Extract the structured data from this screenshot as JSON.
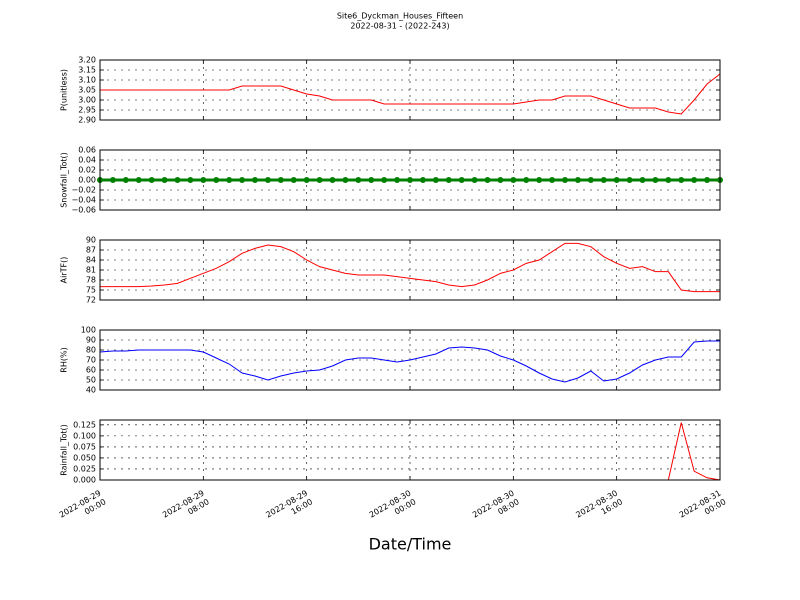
{
  "title": "Site6_Dyckman_Houses_Fifteen",
  "subtitle": "2022-08-31 - (2022-243)",
  "x_axis": {
    "xlabel": "Date/Time",
    "xlim": [
      "2022-08-29 00:00",
      "2022-08-31 00:00"
    ],
    "xticks": [
      "2022-08-29 00:00",
      "2022-08-29 08:00",
      "2022-08-29 16:00",
      "2022-08-30 00:00",
      "2022-08-30 08:00",
      "2022-08-30 16:00",
      "2022-08-31 00:00"
    ],
    "x": [
      "2022-08-29 00:00",
      "2022-08-29 01:00",
      "2022-08-29 02:00",
      "2022-08-29 03:00",
      "2022-08-29 04:00",
      "2022-08-29 05:00",
      "2022-08-29 06:00",
      "2022-08-29 07:00",
      "2022-08-29 08:00",
      "2022-08-29 09:00",
      "2022-08-29 10:00",
      "2022-08-29 11:00",
      "2022-08-29 12:00",
      "2022-08-29 13:00",
      "2022-08-29 14:00",
      "2022-08-29 15:00",
      "2022-08-29 16:00",
      "2022-08-29 17:00",
      "2022-08-29 18:00",
      "2022-08-29 19:00",
      "2022-08-29 20:00",
      "2022-08-29 21:00",
      "2022-08-29 22:00",
      "2022-08-29 23:00",
      "2022-08-30 00:00",
      "2022-08-30 01:00",
      "2022-08-30 02:00",
      "2022-08-30 03:00",
      "2022-08-30 04:00",
      "2022-08-30 05:00",
      "2022-08-30 06:00",
      "2022-08-30 07:00",
      "2022-08-30 08:00",
      "2022-08-30 09:00",
      "2022-08-30 10:00",
      "2022-08-30 11:00",
      "2022-08-30 12:00",
      "2022-08-30 13:00",
      "2022-08-30 14:00",
      "2022-08-30 15:00",
      "2022-08-30 16:00",
      "2022-08-30 17:00",
      "2022-08-30 18:00",
      "2022-08-30 19:00",
      "2022-08-30 20:00",
      "2022-08-30 21:00",
      "2022-08-30 22:00",
      "2022-08-30 23:00",
      "2022-08-31 00:00"
    ]
  },
  "chart_data": [
    {
      "type": "line",
      "ylabel": "P(unitless)",
      "color": "#ff0000",
      "grid": true,
      "ylim": [
        2.9,
        3.2
      ],
      "yticks": [
        {
          "value": 2.9,
          "label": "2.90"
        },
        {
          "value": 2.95,
          "label": "2.95"
        },
        {
          "value": 3.0,
          "label": "3.00"
        },
        {
          "value": 3.05,
          "label": "3.05"
        },
        {
          "value": 3.1,
          "label": "3.10"
        },
        {
          "value": 3.15,
          "label": "3.15"
        },
        {
          "value": 3.2,
          "label": "3.20"
        }
      ],
      "values": [
        3.05,
        3.05,
        3.05,
        3.05,
        3.05,
        3.05,
        3.05,
        3.05,
        3.05,
        3.05,
        3.05,
        3.07,
        3.07,
        3.07,
        3.07,
        3.05,
        3.03,
        3.02,
        3.0,
        3.0,
        3.0,
        3.0,
        2.98,
        2.98,
        2.98,
        2.98,
        2.98,
        2.98,
        2.98,
        2.98,
        2.98,
        2.98,
        2.98,
        2.99,
        3.0,
        3.0,
        3.02,
        3.02,
        3.02,
        3.0,
        2.98,
        2.96,
        2.96,
        2.96,
        2.94,
        2.93,
        3.0,
        3.08,
        3.13
      ]
    },
    {
      "type": "line",
      "ylabel": "Snowfall_Tot()",
      "color": "#008000",
      "markers": true,
      "grid": true,
      "ylim": [
        -0.06,
        0.06
      ],
      "yticks": [
        {
          "value": -0.06,
          "label": "−0.06"
        },
        {
          "value": -0.04,
          "label": "−0.04"
        },
        {
          "value": -0.02,
          "label": "−0.02"
        },
        {
          "value": 0,
          "label": "0.00"
        },
        {
          "value": 0.02,
          "label": "0.02"
        },
        {
          "value": 0.04,
          "label": "0.04"
        },
        {
          "value": 0.06,
          "label": "0.06"
        }
      ],
      "values": [
        0,
        0,
        0,
        0,
        0,
        0,
        0,
        0,
        0,
        0,
        0,
        0,
        0,
        0,
        0,
        0,
        0,
        0,
        0,
        0,
        0,
        0,
        0,
        0,
        0,
        0,
        0,
        0,
        0,
        0,
        0,
        0,
        0,
        0,
        0,
        0,
        0,
        0,
        0,
        0,
        0,
        0,
        0,
        0,
        0,
        0,
        0,
        0,
        0
      ]
    },
    {
      "type": "line",
      "ylabel": "AirTF()",
      "color": "#ff0000",
      "grid": true,
      "ylim": [
        72,
        90
      ],
      "yticks": [
        72,
        75,
        78,
        81,
        84,
        87,
        90
      ],
      "values": [
        76,
        76,
        76,
        76,
        76.2,
        76.5,
        77,
        78.5,
        80,
        81.5,
        83.5,
        86,
        87.5,
        88.5,
        88,
        86.5,
        84,
        82,
        81,
        80,
        79.5,
        79.5,
        79.5,
        79,
        78.5,
        78,
        77.5,
        76.5,
        76,
        76.5,
        78,
        80,
        81,
        83,
        84,
        86.5,
        89,
        89,
        88,
        85,
        83,
        81.5,
        82,
        80.5,
        80.5,
        75,
        74.5,
        74.5,
        74.5
      ]
    },
    {
      "type": "line",
      "ylabel": "RH(%)",
      "color": "#0000ff",
      "grid": true,
      "ylim": [
        40,
        100
      ],
      "yticks": [
        40,
        50,
        60,
        70,
        80,
        90,
        100
      ],
      "values": [
        78,
        79,
        79,
        80,
        80,
        80,
        80,
        80,
        78,
        72,
        66,
        57,
        54,
        50,
        54,
        57,
        59,
        60,
        64,
        70,
        72,
        72,
        70,
        68,
        70,
        73,
        76,
        82,
        83,
        82,
        80,
        74,
        70,
        64,
        57,
        51,
        48,
        52,
        59,
        49,
        51,
        57,
        65,
        70,
        73,
        73,
        88,
        89,
        89
      ]
    },
    {
      "type": "line",
      "ylabel": "Rainfall_Tot()",
      "color": "#ff0000",
      "grid": true,
      "ylim": [
        0,
        0.136
      ],
      "yticks": [
        {
          "value": 0,
          "label": "0.000"
        },
        {
          "value": 0.025,
          "label": "0.025"
        },
        {
          "value": 0.05,
          "label": "0.050"
        },
        {
          "value": 0.075,
          "label": "0.075"
        },
        {
          "value": 0.1,
          "label": "0.100"
        },
        {
          "value": 0.125,
          "label": "0.125"
        }
      ],
      "values": [
        0,
        0,
        0,
        0,
        0,
        0,
        0,
        0,
        0,
        0,
        0,
        0,
        0,
        0,
        0,
        0,
        0,
        0,
        0,
        0,
        0,
        0,
        0,
        0,
        0,
        0,
        0,
        0,
        0,
        0,
        0,
        0,
        0,
        0,
        0,
        0,
        0,
        0,
        0,
        0,
        0,
        0,
        0,
        0,
        0,
        0.13,
        0.02,
        0.005,
        0
      ]
    }
  ]
}
